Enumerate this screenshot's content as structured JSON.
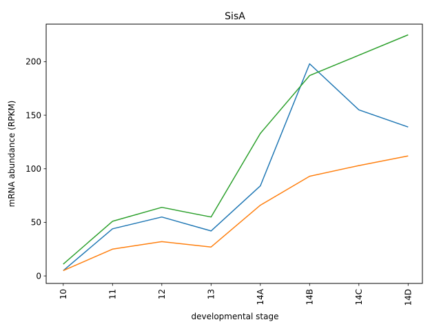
{
  "chart_data": {
    "type": "line",
    "title": "SisA",
    "xlabel": "developmental stage",
    "ylabel": "mRNA abundance (RPKM)",
    "categories": [
      "10",
      "11",
      "12",
      "13",
      "14A",
      "14B",
      "14C",
      "14D"
    ],
    "ylim": [
      -7,
      235
    ],
    "yticks": [
      0,
      50,
      100,
      150,
      200
    ],
    "grid": false,
    "legend": "none",
    "series": [
      {
        "color": "#1f77b4",
        "values": [
          5,
          44,
          55,
          42,
          84,
          198,
          155,
          139
        ]
      },
      {
        "color": "#ff7f0e",
        "values": [
          5,
          25,
          32,
          27,
          66,
          93,
          103,
          112
        ]
      },
      {
        "color": "#2ca02c",
        "values": [
          11,
          51,
          64,
          55,
          133,
          187,
          206,
          225
        ]
      }
    ]
  }
}
